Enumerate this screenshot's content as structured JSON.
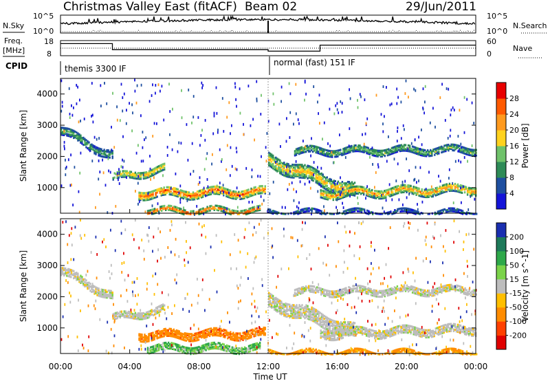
{
  "header": {
    "title": "Christmas Valley East (fitACF)",
    "beam": "Beam 02",
    "date": "29/Jun/2011"
  },
  "top_panels": {
    "nsky_label": "N.Sky",
    "nsearch_label": "N.Search",
    "counts_ticks": [
      "10^5",
      "10^0"
    ],
    "freq_label_1": "Freq.",
    "freq_label_2": "[MHz]",
    "freq_ticks": [
      "18",
      "8"
    ],
    "nave_label": "Nave",
    "nave_ticks": [
      "60",
      "0"
    ],
    "cpid_label": "CPID",
    "cpid_1": "themis 3300 IF",
    "cpid_2": "normal (fast) 151 IF"
  },
  "time_axis": {
    "label": "Time UT",
    "ticks": [
      "00:00",
      "04:00",
      "08:00",
      "12:00",
      "16:00",
      "20:00",
      "00:00"
    ]
  },
  "range_axis": {
    "label": "Slant Range [km]",
    "ticks": [
      "1000",
      "2000",
      "3000",
      "4000"
    ]
  },
  "power_scale": {
    "label": "Power [dB]",
    "ticks": [
      "4",
      "8",
      "12",
      "16",
      "20",
      "24",
      "28"
    ],
    "colors": [
      "#1414d8",
      "#1e4fa0",
      "#2e8b57",
      "#6fc26a",
      "#ffd21e",
      "#ff9a1e",
      "#ff5a00",
      "#e80000"
    ]
  },
  "velocity_scale": {
    "label": "Velocity [m s^-1]",
    "ticks": [
      "200",
      "100",
      "50",
      "15",
      "-15",
      "-50",
      "-100",
      "-200"
    ],
    "colors": [
      "#1a2fb0",
      "#1e7a5a",
      "#2ea84a",
      "#7bd34a",
      "#bdbdbd",
      "#ffbf00",
      "#ff8c00",
      "#ff4000",
      "#e00000"
    ]
  },
  "chart_data": {
    "type": "heatmap",
    "x_unit": "hours UT",
    "x_range": [
      0,
      24
    ],
    "y_range": [
      180,
      4500
    ],
    "cpid_change_hour": 12,
    "frequency_steps_mhz": [
      {
        "start": 0,
        "end": 3,
        "value": 16
      },
      {
        "start": 3,
        "end": 12,
        "value": 12
      },
      {
        "start": 12,
        "end": 15,
        "value": 11
      },
      {
        "start": 15,
        "end": 24,
        "value": 15
      }
    ],
    "power_echo_bands": [
      {
        "h0": 0.0,
        "h1": 3.0,
        "r0": 2850,
        "r1": 2050,
        "width": 240,
        "p": 11
      },
      {
        "h0": 3.0,
        "h1": 6.0,
        "r0": 1350,
        "r1": 1650,
        "width": 220,
        "p": 17
      },
      {
        "h0": 4.5,
        "h1": 11.8,
        "r0": 850,
        "r1": 900,
        "width": 260,
        "p": 22
      },
      {
        "h0": 5.0,
        "h1": 11.5,
        "r0": 300,
        "r1": 300,
        "width": 140,
        "p": 24
      },
      {
        "h0": 12.0,
        "h1": 17.0,
        "r0": 1900,
        "r1": 900,
        "width": 420,
        "p": 17
      },
      {
        "h0": 13.5,
        "h1": 24.0,
        "r0": 2200,
        "r1": 2250,
        "width": 200,
        "p": 12
      },
      {
        "h0": 15.0,
        "h1": 24.0,
        "r0": 850,
        "r1": 1000,
        "width": 260,
        "p": 19
      },
      {
        "h0": 12.0,
        "h1": 24.0,
        "r0": 250,
        "r1": 250,
        "width": 120,
        "p": 7
      }
    ],
    "velocity_echo_bands": [
      {
        "h0": 0.0,
        "h1": 3.0,
        "r0": 2850,
        "r1": 2050,
        "width": 240,
        "v": 0
      },
      {
        "h0": 3.0,
        "h1": 6.0,
        "r0": 1350,
        "r1": 1650,
        "width": 220,
        "v": 0
      },
      {
        "h0": 4.5,
        "h1": 11.8,
        "r0": 800,
        "r1": 850,
        "width": 240,
        "v": -60
      },
      {
        "h0": 5.0,
        "h1": 11.5,
        "r0": 400,
        "r1": 400,
        "width": 220,
        "v": 30
      },
      {
        "h0": 12.0,
        "h1": 17.0,
        "r0": 1900,
        "r1": 900,
        "width": 420,
        "v": 0
      },
      {
        "h0": 13.5,
        "h1": 24.0,
        "r0": 2200,
        "r1": 2250,
        "width": 200,
        "v": 0
      },
      {
        "h0": 15.0,
        "h1": 24.0,
        "r0": 850,
        "r1": 1000,
        "width": 260,
        "v": 0
      },
      {
        "h0": 12.0,
        "h1": 24.0,
        "r0": 250,
        "r1": 250,
        "width": 120,
        "v": -40
      }
    ]
  }
}
